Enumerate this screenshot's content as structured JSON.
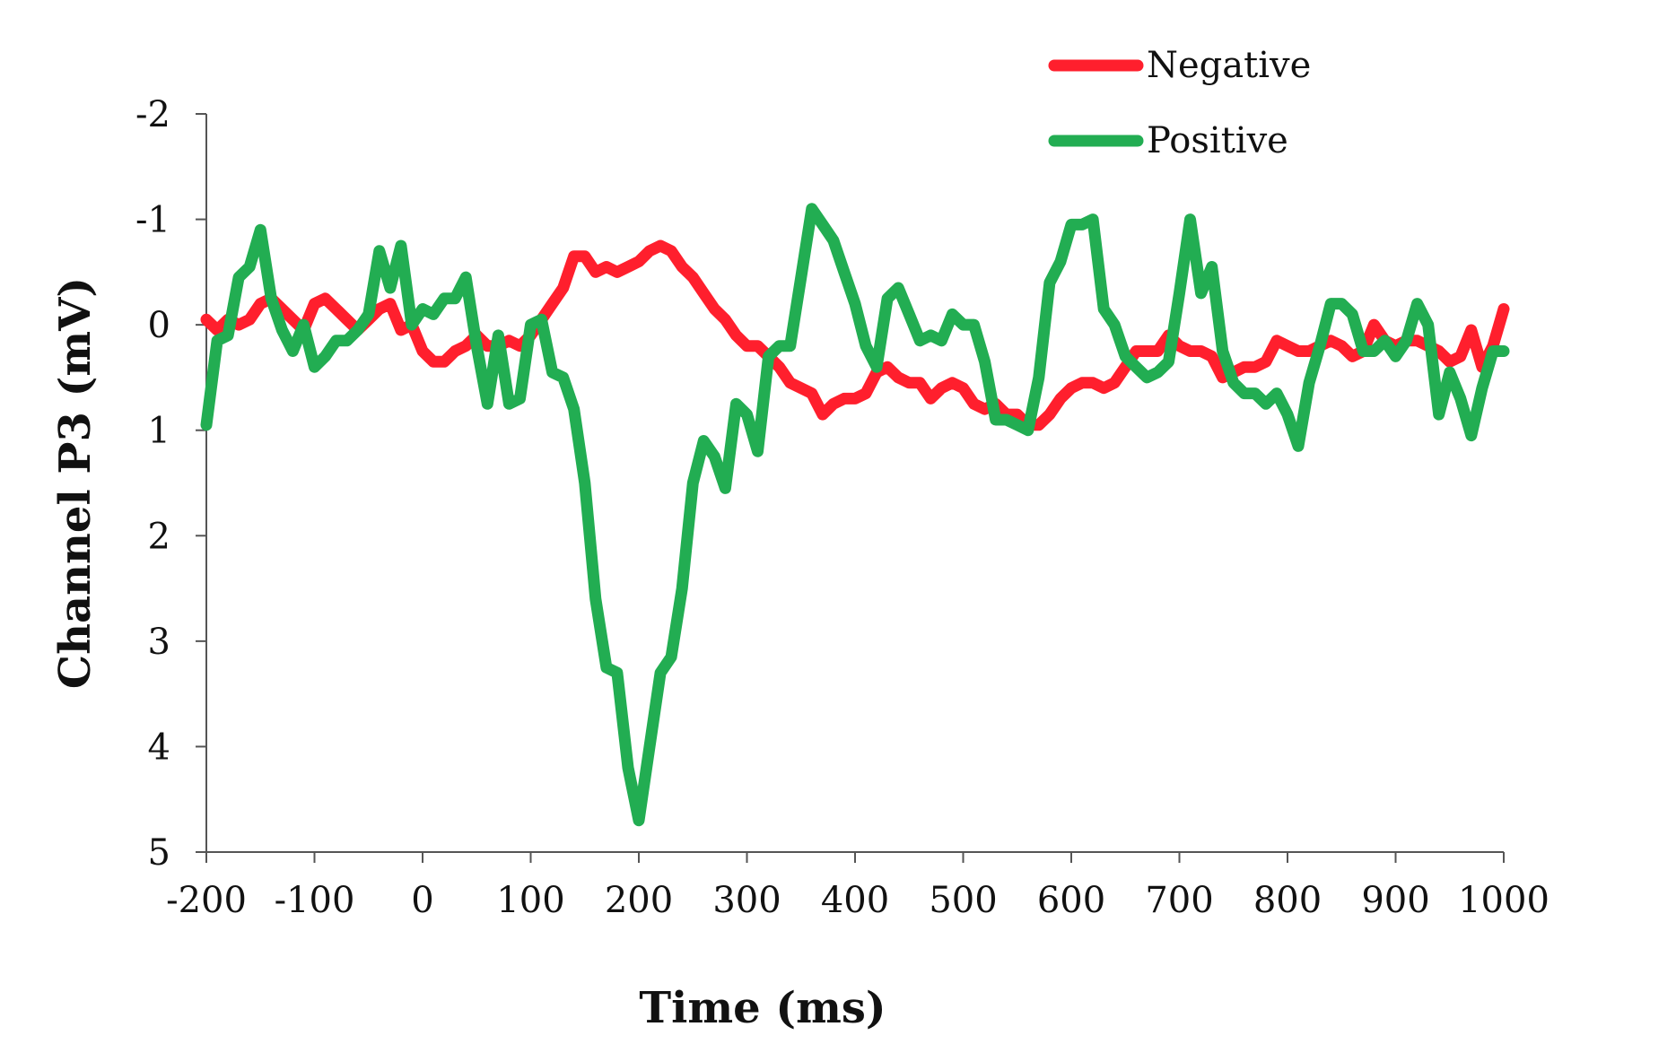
{
  "chart_data": {
    "type": "line",
    "title": "",
    "xlabel": "Time (ms)",
    "ylabel": "Channel P3 (mV)",
    "xlim": [
      -200,
      1000
    ],
    "ylim": [
      -2,
      5
    ],
    "y_inverted": true,
    "grid": false,
    "legend_position": "top-right",
    "xticks": [
      "-200",
      "-100",
      "0",
      "100",
      "200",
      "300",
      "400",
      "500",
      "600",
      "700",
      "800",
      "900",
      "1000"
    ],
    "yticks": [
      "-2",
      "-1",
      "0",
      "1",
      "2",
      "3",
      "4",
      "5"
    ],
    "xtick_values": [
      -200,
      -100,
      0,
      100,
      200,
      300,
      400,
      500,
      600,
      700,
      800,
      900,
      1000
    ],
    "ytick_values": [
      -2,
      -1,
      0,
      1,
      2,
      3,
      4,
      5
    ],
    "series": [
      {
        "name": "Negative",
        "color": "#ff1f2d",
        "points": [
          [
            -200,
            -0.05
          ],
          [
            -190,
            0.05
          ],
          [
            -180,
            -0.05
          ],
          [
            -170,
            0.0
          ],
          [
            -160,
            -0.05
          ],
          [
            -150,
            -0.2
          ],
          [
            -140,
            -0.25
          ],
          [
            -130,
            -0.15
          ],
          [
            -120,
            -0.05
          ],
          [
            -110,
            0.05
          ],
          [
            -100,
            -0.2
          ],
          [
            -90,
            -0.25
          ],
          [
            -80,
            -0.15
          ],
          [
            -70,
            -0.05
          ],
          [
            -60,
            0.05
          ],
          [
            -50,
            -0.05
          ],
          [
            -40,
            -0.15
          ],
          [
            -30,
            -0.2
          ],
          [
            -20,
            0.05
          ],
          [
            -10,
            0.0
          ],
          [
            0,
            0.25
          ],
          [
            10,
            0.35
          ],
          [
            20,
            0.35
          ],
          [
            30,
            0.25
          ],
          [
            40,
            0.2
          ],
          [
            50,
            0.1
          ],
          [
            60,
            0.2
          ],
          [
            70,
            0.2
          ],
          [
            80,
            0.15
          ],
          [
            90,
            0.2
          ],
          [
            100,
            0.1
          ],
          [
            110,
            -0.05
          ],
          [
            120,
            -0.2
          ],
          [
            130,
            -0.35
          ],
          [
            140,
            -0.65
          ],
          [
            150,
            -0.65
          ],
          [
            160,
            -0.5
          ],
          [
            170,
            -0.55
          ],
          [
            180,
            -0.5
          ],
          [
            190,
            -0.55
          ],
          [
            200,
            -0.6
          ],
          [
            210,
            -0.7
          ],
          [
            220,
            -0.75
          ],
          [
            230,
            -0.7
          ],
          [
            240,
            -0.55
          ],
          [
            250,
            -0.45
          ],
          [
            260,
            -0.3
          ],
          [
            270,
            -0.15
          ],
          [
            280,
            -0.05
          ],
          [
            290,
            0.1
          ],
          [
            300,
            0.2
          ],
          [
            310,
            0.2
          ],
          [
            320,
            0.3
          ],
          [
            330,
            0.4
          ],
          [
            340,
            0.55
          ],
          [
            350,
            0.6
          ],
          [
            360,
            0.65
          ],
          [
            370,
            0.85
          ],
          [
            380,
            0.75
          ],
          [
            390,
            0.7
          ],
          [
            400,
            0.7
          ],
          [
            410,
            0.65
          ],
          [
            420,
            0.45
          ],
          [
            430,
            0.4
          ],
          [
            440,
            0.5
          ],
          [
            450,
            0.55
          ],
          [
            460,
            0.55
          ],
          [
            470,
            0.7
          ],
          [
            480,
            0.6
          ],
          [
            490,
            0.55
          ],
          [
            500,
            0.6
          ],
          [
            510,
            0.75
          ],
          [
            520,
            0.8
          ],
          [
            530,
            0.75
          ],
          [
            540,
            0.85
          ],
          [
            550,
            0.85
          ],
          [
            560,
            0.95
          ],
          [
            570,
            0.95
          ],
          [
            580,
            0.85
          ],
          [
            590,
            0.7
          ],
          [
            600,
            0.6
          ],
          [
            610,
            0.55
          ],
          [
            620,
            0.55
          ],
          [
            630,
            0.6
          ],
          [
            640,
            0.55
          ],
          [
            650,
            0.4
          ],
          [
            660,
            0.25
          ],
          [
            670,
            0.25
          ],
          [
            680,
            0.25
          ],
          [
            690,
            0.1
          ],
          [
            700,
            0.2
          ],
          [
            710,
            0.25
          ],
          [
            720,
            0.25
          ],
          [
            730,
            0.3
          ],
          [
            740,
            0.5
          ],
          [
            750,
            0.45
          ],
          [
            760,
            0.4
          ],
          [
            770,
            0.4
          ],
          [
            780,
            0.35
          ],
          [
            790,
            0.15
          ],
          [
            800,
            0.2
          ],
          [
            810,
            0.25
          ],
          [
            820,
            0.25
          ],
          [
            830,
            0.2
          ],
          [
            840,
            0.15
          ],
          [
            850,
            0.2
          ],
          [
            860,
            0.3
          ],
          [
            870,
            0.25
          ],
          [
            880,
            0.0
          ],
          [
            890,
            0.15
          ],
          [
            900,
            0.2
          ],
          [
            910,
            0.15
          ],
          [
            920,
            0.15
          ],
          [
            930,
            0.2
          ],
          [
            940,
            0.25
          ],
          [
            950,
            0.35
          ],
          [
            960,
            0.3
          ],
          [
            970,
            0.05
          ],
          [
            980,
            0.4
          ],
          [
            990,
            0.2
          ],
          [
            1000,
            -0.15
          ]
        ]
      },
      {
        "name": "Positive",
        "color": "#22ad52",
        "points": [
          [
            -200,
            0.95
          ],
          [
            -190,
            0.15
          ],
          [
            -180,
            0.1
          ],
          [
            -170,
            -0.45
          ],
          [
            -160,
            -0.55
          ],
          [
            -150,
            -0.9
          ],
          [
            -140,
            -0.25
          ],
          [
            -130,
            0.05
          ],
          [
            -120,
            0.25
          ],
          [
            -110,
            0.0
          ],
          [
            -100,
            0.4
          ],
          [
            -90,
            0.3
          ],
          [
            -80,
            0.15
          ],
          [
            -70,
            0.15
          ],
          [
            -60,
            0.05
          ],
          [
            -50,
            -0.1
          ],
          [
            -40,
            -0.7
          ],
          [
            -30,
            -0.35
          ],
          [
            -20,
            -0.75
          ],
          [
            -10,
            0.0
          ],
          [
            0,
            -0.15
          ],
          [
            10,
            -0.1
          ],
          [
            20,
            -0.25
          ],
          [
            30,
            -0.25
          ],
          [
            40,
            -0.45
          ],
          [
            50,
            0.2
          ],
          [
            60,
            0.75
          ],
          [
            70,
            0.1
          ],
          [
            80,
            0.75
          ],
          [
            90,
            0.7
          ],
          [
            100,
            0.0
          ],
          [
            110,
            -0.05
          ],
          [
            120,
            0.45
          ],
          [
            130,
            0.5
          ],
          [
            140,
            0.8
          ],
          [
            150,
            1.5
          ],
          [
            160,
            2.6
          ],
          [
            170,
            3.25
          ],
          [
            180,
            3.3
          ],
          [
            190,
            4.2
          ],
          [
            200,
            4.7
          ],
          [
            210,
            4.0
          ],
          [
            220,
            3.3
          ],
          [
            230,
            3.15
          ],
          [
            240,
            2.5
          ],
          [
            250,
            1.5
          ],
          [
            260,
            1.1
          ],
          [
            270,
            1.25
          ],
          [
            280,
            1.55
          ],
          [
            290,
            0.75
          ],
          [
            300,
            0.85
          ],
          [
            310,
            1.2
          ],
          [
            320,
            0.3
          ],
          [
            330,
            0.2
          ],
          [
            340,
            0.2
          ],
          [
            350,
            -0.45
          ],
          [
            360,
            -1.1
          ],
          [
            370,
            -0.95
          ],
          [
            380,
            -0.8
          ],
          [
            390,
            -0.5
          ],
          [
            400,
            -0.2
          ],
          [
            410,
            0.2
          ],
          [
            420,
            0.4
          ],
          [
            430,
            -0.25
          ],
          [
            440,
            -0.35
          ],
          [
            450,
            -0.1
          ],
          [
            460,
            0.15
          ],
          [
            470,
            0.1
          ],
          [
            480,
            0.15
          ],
          [
            490,
            -0.1
          ],
          [
            500,
            0.0
          ],
          [
            510,
            0.0
          ],
          [
            520,
            0.35
          ],
          [
            530,
            0.9
          ],
          [
            540,
            0.9
          ],
          [
            550,
            0.95
          ],
          [
            560,
            1.0
          ],
          [
            570,
            0.5
          ],
          [
            580,
            -0.4
          ],
          [
            590,
            -0.6
          ],
          [
            600,
            -0.95
          ],
          [
            610,
            -0.95
          ],
          [
            620,
            -1.0
          ],
          [
            630,
            -0.15
          ],
          [
            640,
            0.0
          ],
          [
            650,
            0.3
          ],
          [
            660,
            0.4
          ],
          [
            670,
            0.5
          ],
          [
            680,
            0.45
          ],
          [
            690,
            0.35
          ],
          [
            700,
            -0.3
          ],
          [
            710,
            -1.0
          ],
          [
            720,
            -0.3
          ],
          [
            730,
            -0.55
          ],
          [
            740,
            0.25
          ],
          [
            750,
            0.55
          ],
          [
            760,
            0.65
          ],
          [
            770,
            0.65
          ],
          [
            780,
            0.75
          ],
          [
            790,
            0.65
          ],
          [
            800,
            0.85
          ],
          [
            810,
            1.15
          ],
          [
            820,
            0.55
          ],
          [
            830,
            0.2
          ],
          [
            840,
            -0.2
          ],
          [
            850,
            -0.2
          ],
          [
            860,
            -0.1
          ],
          [
            870,
            0.25
          ],
          [
            880,
            0.25
          ],
          [
            890,
            0.15
          ],
          [
            900,
            0.3
          ],
          [
            910,
            0.15
          ],
          [
            920,
            -0.2
          ],
          [
            930,
            0.0
          ],
          [
            940,
            0.85
          ],
          [
            950,
            0.45
          ],
          [
            960,
            0.7
          ],
          [
            970,
            1.05
          ],
          [
            980,
            0.6
          ],
          [
            990,
            0.25
          ],
          [
            1000,
            0.25
          ]
        ]
      }
    ]
  }
}
